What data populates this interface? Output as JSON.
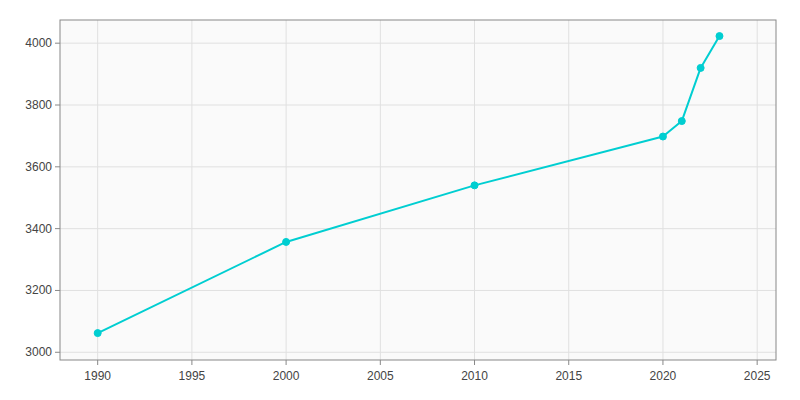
{
  "chart_data": {
    "type": "line",
    "x": [
      1990,
      2000,
      2010,
      2020,
      2021,
      2022,
      2023
    ],
    "values": [
      3062,
      3357,
      3540,
      3698,
      3748,
      3920,
      4023
    ],
    "color": "#00CED1",
    "marker": "circle",
    "xlim": [
      1988,
      2026
    ],
    "ylim": [
      2975,
      4075
    ],
    "xticks": [
      1990,
      1995,
      2000,
      2005,
      2010,
      2015,
      2020,
      2025
    ],
    "yticks": [
      3000,
      3200,
      3400,
      3600,
      3800,
      4000
    ],
    "grid": true
  }
}
